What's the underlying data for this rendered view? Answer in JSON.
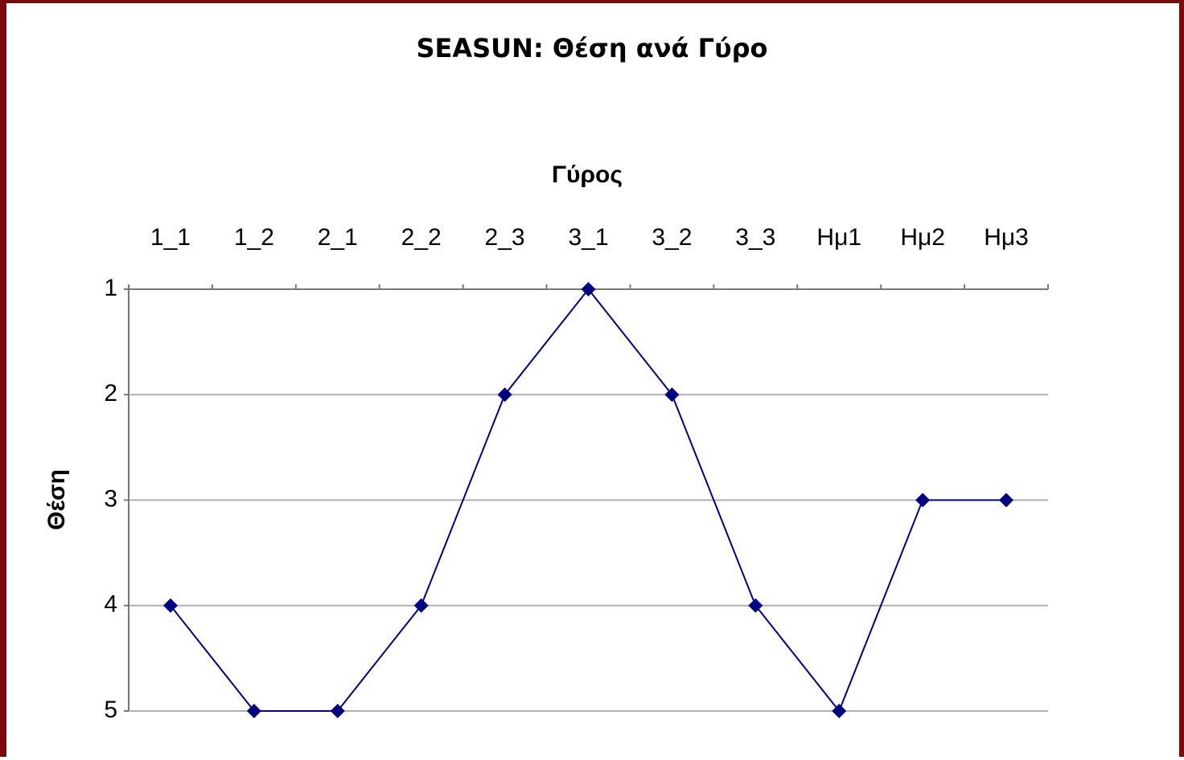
{
  "chart_data": {
    "type": "line",
    "title": "SEASUN: Θέση ανά Γύρο",
    "x_label": "Γύρος",
    "y_label": "Θέση",
    "categories": [
      "1_1",
      "1_2",
      "2_1",
      "2_2",
      "2_3",
      "3_1",
      "3_2",
      "3_3",
      "Ημ1",
      "Ημ2",
      "Ημ3"
    ],
    "series": [
      {
        "name": "SEASUN",
        "color": "#000080",
        "values": [
          4,
          5,
          5,
          4,
          2,
          1,
          2,
          4,
          5,
          3,
          3
        ]
      }
    ],
    "ylim": [
      1,
      5
    ],
    "yticks": [
      1,
      2,
      3,
      4,
      5
    ],
    "y_reversed": true,
    "grid": true,
    "x_axis_position": "top"
  }
}
